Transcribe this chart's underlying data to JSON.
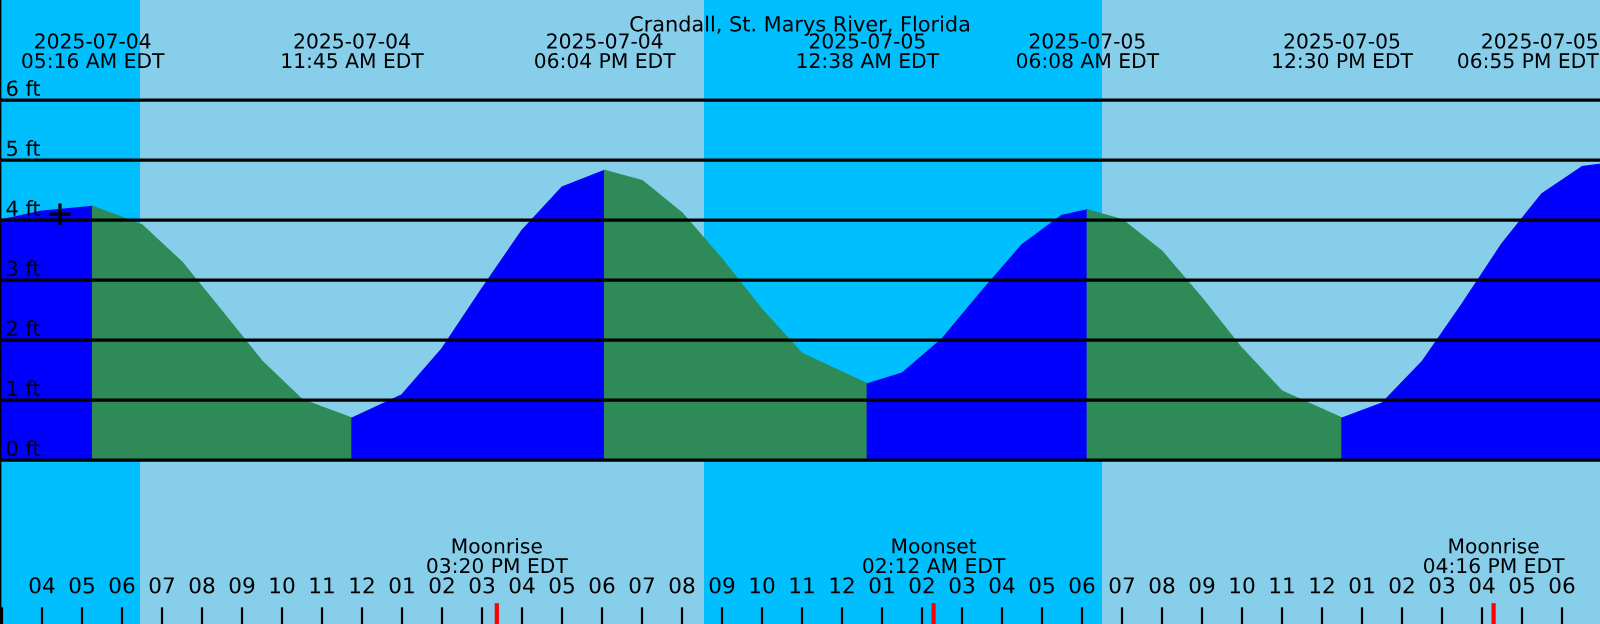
{
  "chart_data": {
    "type": "area",
    "title": "Crandall, St. Marys River, Florida",
    "xlim": [
      "2025-07-04T02:57",
      "2025-07-05T18:57"
    ],
    "ylim": [
      -2.73,
      7.67
    ],
    "yticks": [
      {
        "value": 0,
        "label": "0 ft"
      },
      {
        "value": 1,
        "label": "1 ft"
      },
      {
        "value": 2,
        "label": "2 ft"
      },
      {
        "value": 3,
        "label": "3 ft"
      },
      {
        "value": 4,
        "label": "4 ft"
      },
      {
        "value": 5,
        "label": "5 ft"
      },
      {
        "value": 6,
        "label": "6 ft"
      }
    ],
    "xticks": [
      {
        "value": "2025-07-04T03:00",
        "label": null
      },
      {
        "value": "2025-07-04T04:00",
        "label": "04"
      },
      {
        "value": "2025-07-04T05:00",
        "label": "05"
      },
      {
        "value": "2025-07-04T06:00",
        "label": "06"
      },
      {
        "value": "2025-07-04T07:00",
        "label": "07"
      },
      {
        "value": "2025-07-04T08:00",
        "label": "08"
      },
      {
        "value": "2025-07-04T09:00",
        "label": "09"
      },
      {
        "value": "2025-07-04T10:00",
        "label": "10"
      },
      {
        "value": "2025-07-04T11:00",
        "label": "11"
      },
      {
        "value": "2025-07-04T12:00",
        "label": "12"
      },
      {
        "value": "2025-07-04T13:00",
        "label": "01"
      },
      {
        "value": "2025-07-04T14:00",
        "label": "02"
      },
      {
        "value": "2025-07-04T15:00",
        "label": "03"
      },
      {
        "value": "2025-07-04T16:00",
        "label": "04"
      },
      {
        "value": "2025-07-04T17:00",
        "label": "05"
      },
      {
        "value": "2025-07-04T18:00",
        "label": "06"
      },
      {
        "value": "2025-07-04T19:00",
        "label": "07"
      },
      {
        "value": "2025-07-04T20:00",
        "label": "08"
      },
      {
        "value": "2025-07-04T21:00",
        "label": "09"
      },
      {
        "value": "2025-07-04T22:00",
        "label": "10"
      },
      {
        "value": "2025-07-04T23:00",
        "label": "11"
      },
      {
        "value": "2025-07-05T00:00",
        "label": "12"
      },
      {
        "value": "2025-07-05T01:00",
        "label": "01"
      },
      {
        "value": "2025-07-05T02:00",
        "label": "02"
      },
      {
        "value": "2025-07-05T03:00",
        "label": "03"
      },
      {
        "value": "2025-07-05T04:00",
        "label": "04"
      },
      {
        "value": "2025-07-05T05:00",
        "label": "05"
      },
      {
        "value": "2025-07-05T06:00",
        "label": "06"
      },
      {
        "value": "2025-07-05T07:00",
        "label": "07"
      },
      {
        "value": "2025-07-05T08:00",
        "label": "08"
      },
      {
        "value": "2025-07-05T09:00",
        "label": "09"
      },
      {
        "value": "2025-07-05T10:00",
        "label": "10"
      },
      {
        "value": "2025-07-05T11:00",
        "label": "11"
      },
      {
        "value": "2025-07-05T12:00",
        "label": "12"
      },
      {
        "value": "2025-07-05T13:00",
        "label": "01"
      },
      {
        "value": "2025-07-05T14:00",
        "label": "02"
      },
      {
        "value": "2025-07-05T15:00",
        "label": "03"
      },
      {
        "value": "2025-07-05T16:00",
        "label": "04"
      },
      {
        "value": "2025-07-05T17:00",
        "label": "05"
      },
      {
        "value": "2025-07-05T18:00",
        "label": "06"
      }
    ],
    "x2lim": [
      "2025-07-04T02:57",
      "2025-07-05T18:57"
    ],
    "x2ticks": [
      {
        "value": "2025-07-04T05:16",
        "label": "2025-07-04\n05:16 AM EDT"
      },
      {
        "value": "2025-07-04T11:45",
        "label": "2025-07-04\n11:45 AM EDT"
      },
      {
        "value": "2025-07-04T18:04",
        "label": "2025-07-04\n06:04 PM EDT"
      },
      {
        "value": "2025-07-05T00:38",
        "label": "2025-07-05\n12:38 AM EDT"
      },
      {
        "value": "2025-07-05T06:08",
        "label": "2025-07-05\n06:08 AM EDT"
      },
      {
        "value": "2025-07-05T12:30",
        "label": "2025-07-05\n12:30 PM EDT"
      },
      {
        "value": "2025-07-05T18:55",
        "label": "2025-07-05\n06:55 PM EDT"
      }
    ],
    "grid": "y",
    "legend": false,
    "bands": [
      {
        "axis": "x",
        "from": "2025-07-04T02:57",
        "to": "2025-07-04T06:27",
        "color": "#00bfff"
      },
      {
        "axis": "x",
        "from": "2025-07-04T06:27",
        "to": "2025-07-04T20:33",
        "color": "#87ceeb"
      },
      {
        "axis": "x",
        "from": "2025-07-04T20:33",
        "to": "2025-07-05T06:30",
        "color": "#00bfff"
      },
      {
        "axis": "x",
        "from": "2025-07-05T06:30",
        "to": "2025-07-05T18:57",
        "color": "#87ceeb"
      }
    ],
    "series": [
      {
        "color": "#0000ff",
        "x": [
          "2025-07-04T02:57",
          "2025-07-04T04:00",
          "2025-07-04T05:16"
        ],
        "values": [
          4.0,
          4.15,
          4.23
        ]
      },
      {
        "color": "#2e8b57",
        "x": [
          "2025-07-04T05:16",
          "2025-07-04T06:30",
          "2025-07-04T07:30",
          "2025-07-04T08:30",
          "2025-07-04T09:30",
          "2025-07-04T10:30",
          "2025-07-04T11:45"
        ],
        "values": [
          4.23,
          3.92,
          3.3,
          2.48,
          1.65,
          1.01,
          0.7
        ]
      },
      {
        "color": "#0000ff",
        "x": [
          "2025-07-04T11:45",
          "2025-07-04T13:00",
          "2025-07-04T14:00",
          "2025-07-04T15:00",
          "2025-07-04T16:00",
          "2025-07-04T17:00",
          "2025-07-04T18:04"
        ],
        "values": [
          0.7,
          1.09,
          1.86,
          2.86,
          3.83,
          4.55,
          4.83
        ]
      },
      {
        "color": "#2e8b57",
        "x": [
          "2025-07-04T18:04",
          "2025-07-04T19:00",
          "2025-07-04T20:00",
          "2025-07-04T21:00",
          "2025-07-04T22:00",
          "2025-07-04T23:00",
          "2025-07-05T00:38"
        ],
        "values": [
          4.83,
          4.66,
          4.12,
          3.35,
          2.51,
          1.78,
          1.27
        ]
      },
      {
        "color": "#0000ff",
        "x": [
          "2025-07-05T00:38",
          "2025-07-05T01:30",
          "2025-07-05T02:30",
          "2025-07-05T03:30",
          "2025-07-05T04:30",
          "2025-07-05T05:30",
          "2025-07-05T06:08"
        ],
        "values": [
          1.27,
          1.45,
          2.02,
          2.82,
          3.59,
          4.08,
          4.17
        ]
      },
      {
        "color": "#2e8b57",
        "x": [
          "2025-07-05T06:08",
          "2025-07-05T07:00",
          "2025-07-05T08:00",
          "2025-07-05T09:00",
          "2025-07-05T10:00",
          "2025-07-05T11:00",
          "2025-07-05T12:30"
        ],
        "values": [
          4.17,
          4.01,
          3.48,
          2.7,
          1.86,
          1.15,
          0.7
        ]
      },
      {
        "color": "#0000ff",
        "x": [
          "2025-07-05T12:30",
          "2025-07-05T13:30",
          "2025-07-05T14:30",
          "2025-07-05T15:30",
          "2025-07-05T16:30",
          "2025-07-05T17:30",
          "2025-07-05T18:30",
          "2025-07-05T18:55",
          "2025-07-05T18:57"
        ],
        "values": [
          0.7,
          0.95,
          1.64,
          2.6,
          3.61,
          4.44,
          4.89,
          4.93,
          4.93
        ]
      },
      {
        "type": "scatter",
        "color": "#000000",
        "marker": "cross",
        "x": [
          "2025-07-04T04:27"
        ],
        "values": [
          4.1
        ]
      }
    ],
    "annotations": [
      "Moonrise\n03:20 PM EDT",
      "Moonset\n02:12 AM EDT",
      "Moonrise\n04:16 PM EDT"
    ]
  }
}
